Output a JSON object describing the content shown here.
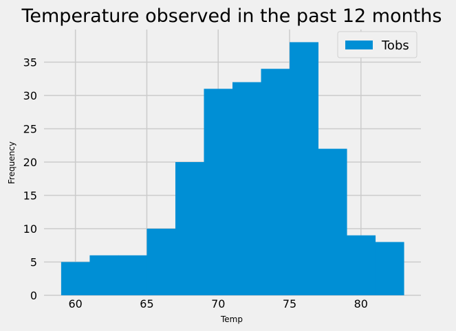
{
  "chart_data": {
    "type": "bar",
    "subtype": "histogram",
    "title": "Temperature observed in the past 12 months",
    "xlabel": "Temp",
    "ylabel": "Frequency",
    "bins": [
      {
        "start": 59,
        "end": 61,
        "count": 5
      },
      {
        "start": 61,
        "end": 63,
        "count": 6
      },
      {
        "start": 63,
        "end": 65,
        "count": 6
      },
      {
        "start": 65,
        "end": 67,
        "count": 10
      },
      {
        "start": 67,
        "end": 69,
        "count": 20
      },
      {
        "start": 69,
        "end": 71,
        "count": 31
      },
      {
        "start": 71,
        "end": 73,
        "count": 32
      },
      {
        "start": 73,
        "end": 75,
        "count": 34
      },
      {
        "start": 75,
        "end": 77,
        "count": 38
      },
      {
        "start": 77,
        "end": 79,
        "count": 22
      },
      {
        "start": 79,
        "end": 81,
        "count": 9
      },
      {
        "start": 81,
        "end": 83,
        "count": 8
      }
    ],
    "series": [
      {
        "name": "Tobs",
        "color": "#008fd5"
      }
    ],
    "xlim": [
      57.8,
      84.2
    ],
    "ylim": [
      0,
      39.9
    ],
    "xticks": [
      "60",
      "65",
      "70",
      "75",
      "80"
    ],
    "yticks": [
      "0",
      "5",
      "10",
      "15",
      "20",
      "25",
      "30",
      "35"
    ],
    "grid": true,
    "legend_position": "top-right",
    "style": "fivethirtyeight"
  }
}
